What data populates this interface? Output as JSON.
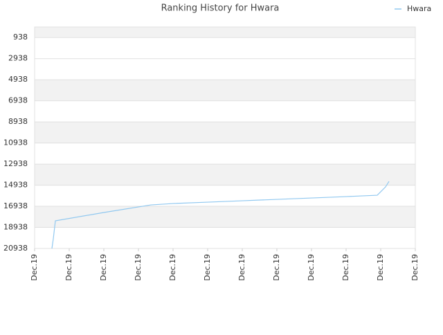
{
  "chart_data": {
    "type": "line",
    "title": "Ranking History for Hwara",
    "series": [
      {
        "name": "Hwara",
        "color": "#90c8f0",
        "x": [
          0.5,
          0.54,
          0.6,
          2.0,
          3.36,
          4.0,
          5.0,
          6.0,
          7.0,
          8.0,
          9.0,
          9.9,
          10.14,
          10.24
        ],
        "values": [
          20938,
          20020,
          18314,
          17527,
          16806,
          16675,
          16544,
          16413,
          16282,
          16150,
          16019,
          15888,
          15101,
          14577
        ]
      }
    ],
    "xlim": [
      0,
      11
    ],
    "xticks": [
      {
        "value": 0,
        "label": "Dec.19"
      },
      {
        "value": 1,
        "label": "Dec.19"
      },
      {
        "value": 2,
        "label": "Dec.19"
      },
      {
        "value": 3,
        "label": "Dec.19"
      },
      {
        "value": 4,
        "label": "Dec.19"
      },
      {
        "value": 5,
        "label": "Dec.19"
      },
      {
        "value": 6,
        "label": "Dec.19"
      },
      {
        "value": 7,
        "label": "Dec.19"
      },
      {
        "value": 8,
        "label": "Dec.19"
      },
      {
        "value": 9,
        "label": "Dec.19"
      },
      {
        "value": 10,
        "label": "Dec.19"
      },
      {
        "value": 11,
        "label": "Dec.19"
      }
    ],
    "ylim": [
      -62,
      20938
    ],
    "y_inverted": true,
    "yticks": [
      938,
      2938,
      4938,
      6938,
      8938,
      10938,
      12938,
      14938,
      16938,
      18938,
      20938
    ],
    "grid": true,
    "legend": "top-right"
  }
}
